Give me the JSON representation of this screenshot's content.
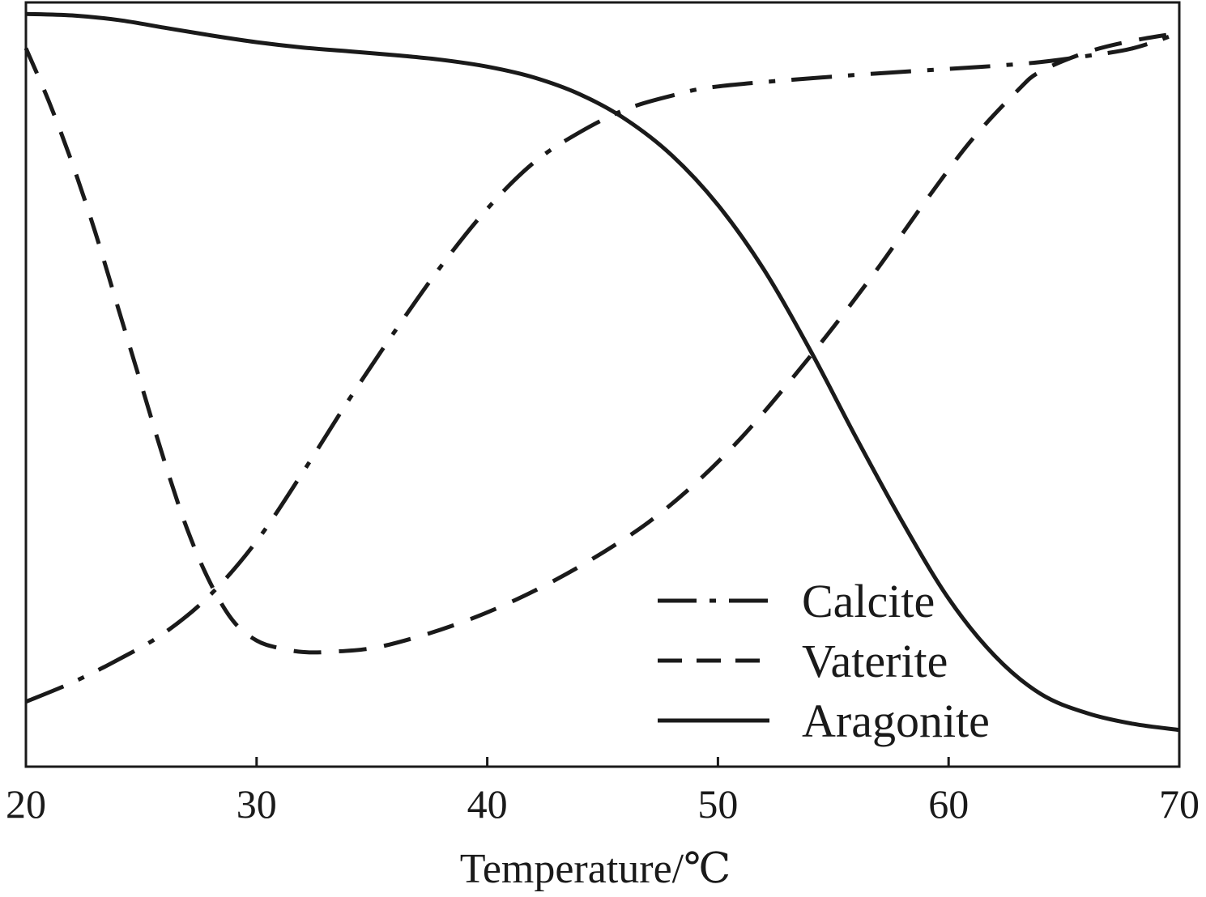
{
  "chart_data": {
    "type": "line",
    "title": "",
    "xlabel": "Temperature/℃",
    "ylabel": "",
    "xlim": [
      20,
      70
    ],
    "ylim": [
      0,
      1
    ],
    "xticks": [
      20,
      30,
      40,
      50,
      60,
      70
    ],
    "grid": false,
    "legend_position": "bottom-right",
    "series": [
      {
        "name": "Calcite",
        "style": "dashdot",
        "x": [
          20,
          22,
          24,
          26,
          28,
          30,
          32,
          34,
          36,
          38,
          40,
          42,
          44,
          46,
          48,
          50,
          55,
          60,
          62,
          64,
          66,
          68,
          70
        ],
        "y": [
          0.085,
          0.11,
          0.14,
          0.175,
          0.225,
          0.295,
          0.385,
          0.48,
          0.57,
          0.655,
          0.73,
          0.79,
          0.83,
          0.86,
          0.878,
          0.89,
          0.903,
          0.913,
          0.917,
          0.922,
          0.93,
          0.94,
          0.96
        ]
      },
      {
        "name": "Vaterite",
        "style": "dashed",
        "x": [
          20,
          21,
          22,
          23,
          24,
          25,
          26,
          27,
          28,
          29,
          30,
          31,
          32,
          33,
          35,
          37,
          39,
          41,
          43,
          45,
          47,
          49,
          51,
          53,
          55,
          57,
          59,
          61,
          63,
          64,
          66,
          68,
          70
        ],
        "y": [
          0.94,
          0.87,
          0.79,
          0.7,
          0.6,
          0.5,
          0.4,
          0.31,
          0.24,
          0.19,
          0.165,
          0.155,
          0.15,
          0.15,
          0.155,
          0.17,
          0.19,
          0.215,
          0.245,
          0.28,
          0.32,
          0.37,
          0.43,
          0.5,
          0.575,
          0.655,
          0.74,
          0.82,
          0.885,
          0.91,
          0.935,
          0.95,
          0.96
        ]
      },
      {
        "name": "Aragonite",
        "style": "solid",
        "x": [
          20,
          22,
          24,
          26,
          28,
          30,
          32,
          34,
          36,
          38,
          40,
          42,
          44,
          46,
          48,
          50,
          52,
          54,
          56,
          58,
          60,
          62,
          64,
          66,
          68,
          70
        ],
        "y": [
          0.985,
          0.983,
          0.977,
          0.967,
          0.957,
          0.948,
          0.941,
          0.936,
          0.931,
          0.925,
          0.916,
          0.902,
          0.88,
          0.847,
          0.8,
          0.735,
          0.65,
          0.545,
          0.43,
          0.32,
          0.22,
          0.145,
          0.095,
          0.07,
          0.056,
          0.048
        ]
      }
    ]
  }
}
